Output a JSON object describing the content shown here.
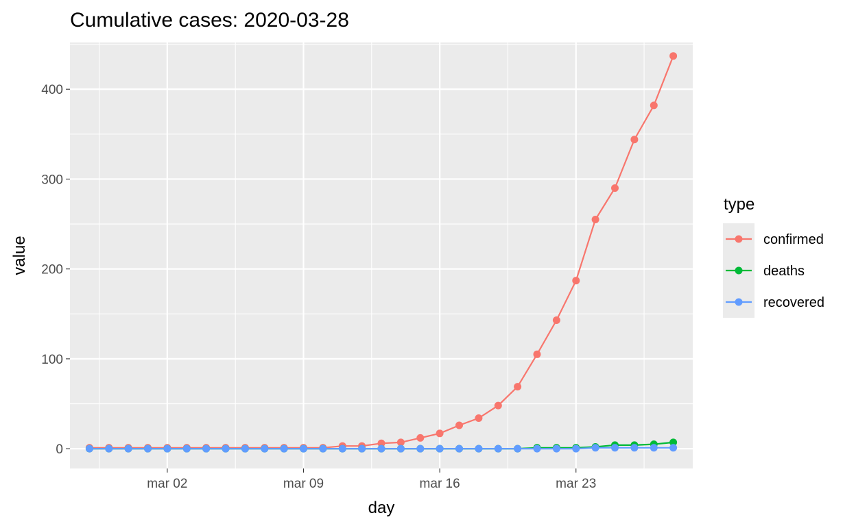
{
  "chart_data": {
    "type": "line",
    "title": "Cumulative cases: 2020-03-28",
    "xlabel": "day",
    "ylabel": "value",
    "x": [
      "2020-02-27",
      "2020-02-28",
      "2020-02-29",
      "2020-03-01",
      "2020-03-02",
      "2020-03-03",
      "2020-03-04",
      "2020-03-05",
      "2020-03-06",
      "2020-03-07",
      "2020-03-08",
      "2020-03-09",
      "2020-03-10",
      "2020-03-11",
      "2020-03-12",
      "2020-03-13",
      "2020-03-14",
      "2020-03-15",
      "2020-03-16",
      "2020-03-17",
      "2020-03-18",
      "2020-03-19",
      "2020-03-20",
      "2020-03-21",
      "2020-03-22",
      "2020-03-23",
      "2020-03-24",
      "2020-03-25",
      "2020-03-26",
      "2020-03-27",
      "2020-03-28"
    ],
    "xlim": [
      "2020-02-26",
      "2020-03-29"
    ],
    "x_ticks": [
      {
        "date": "2020-03-02",
        "label": "mar 02"
      },
      {
        "date": "2020-03-09",
        "label": "mar 09"
      },
      {
        "date": "2020-03-16",
        "label": "mar 16"
      },
      {
        "date": "2020-03-23",
        "label": "mar 23"
      }
    ],
    "ylim": [
      -22,
      452
    ],
    "y_ticks": [
      0,
      100,
      200,
      300,
      400
    ],
    "grid": true,
    "legend_title": "type",
    "legend_position": "right",
    "series": [
      {
        "name": "confirmed",
        "color": "#F8766D",
        "values": [
          1,
          1,
          1,
          1,
          1,
          1,
          1,
          1,
          1,
          1,
          1,
          1,
          1,
          3,
          3,
          6,
          7,
          12,
          17,
          26,
          34,
          48,
          69,
          105,
          143,
          187,
          255,
          290,
          344,
          382,
          437
        ]
      },
      {
        "name": "deaths",
        "color": "#00BA38",
        "values": [
          0,
          0,
          0,
          0,
          0,
          0,
          0,
          0,
          0,
          0,
          0,
          0,
          0,
          0,
          0,
          0,
          0,
          0,
          0,
          0,
          0,
          0,
          0,
          1,
          1,
          1,
          2,
          4,
          4,
          5,
          7
        ]
      },
      {
        "name": "recovered",
        "color": "#619CFF",
        "values": [
          0,
          0,
          0,
          0,
          0,
          0,
          0,
          0,
          0,
          0,
          0,
          0,
          0,
          0,
          0,
          0,
          0,
          0,
          0,
          0,
          0,
          0,
          0,
          0,
          0,
          0,
          1,
          1,
          1,
          1,
          1
        ]
      }
    ]
  }
}
